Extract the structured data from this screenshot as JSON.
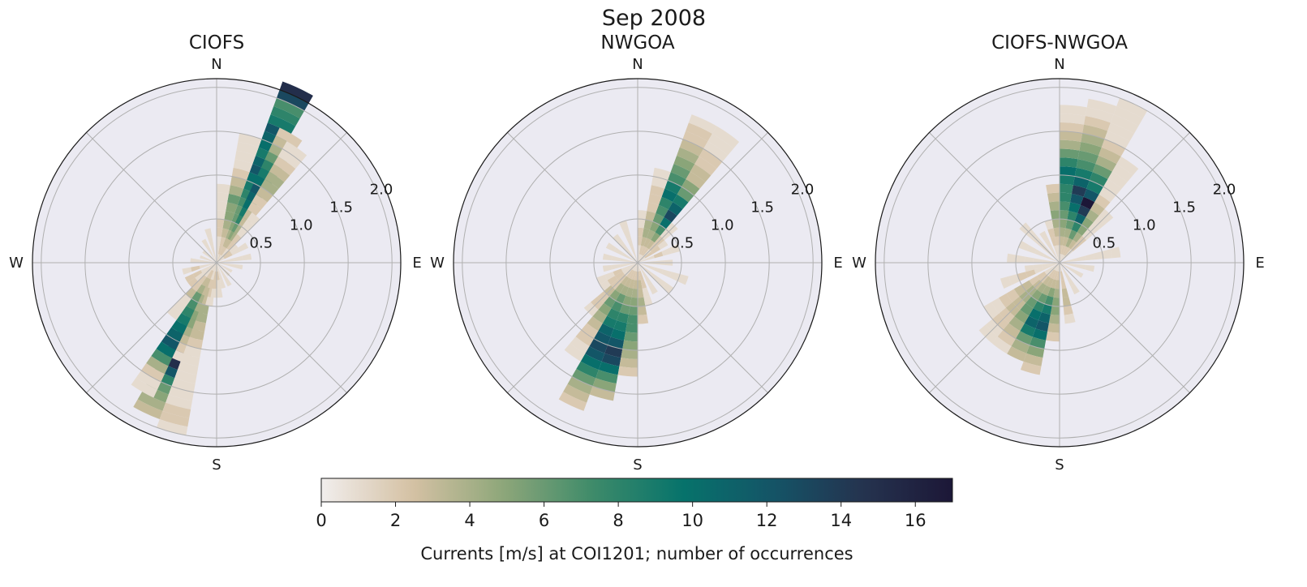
{
  "title": "Sep 2008",
  "colorbar": {
    "label": "Currents [m/s] at COI1201; number of occurrences",
    "ticks": [
      0,
      2,
      4,
      6,
      8,
      10,
      12,
      14,
      16
    ],
    "range": [
      0,
      17
    ],
    "colormap": [
      "#f1eeed",
      "#d5c1a4",
      "#8fa77a",
      "#3f8b6a",
      "#06736b",
      "#145467",
      "#25334f",
      "#1c1737"
    ]
  },
  "chart_data": [
    {
      "type": "polar-histogram",
      "title": "CIOFS",
      "direction_labels": [
        "N",
        "E",
        "S",
        "W"
      ],
      "radial_ticks": [
        "0.5",
        "1.0",
        "1.5",
        "2.0"
      ],
      "radial_max": 2.1,
      "speed_bin_width": 0.1,
      "direction_bin_width_deg": 10,
      "cells": [
        {
          "dir": 25,
          "counts": [
            2,
            2,
            3,
            4,
            5,
            6,
            6,
            7,
            8,
            9,
            10,
            12,
            11,
            9,
            10,
            11,
            12,
            9,
            8,
            7,
            13,
            15
          ]
        },
        {
          "dir": 30,
          "counts": [
            1,
            2,
            3,
            5,
            6,
            8,
            9,
            10,
            11,
            12,
            10,
            9,
            8,
            6,
            4,
            3,
            2
          ]
        },
        {
          "dir": 35,
          "counts": [
            1,
            2,
            3,
            4,
            4,
            3,
            3,
            2,
            2,
            3,
            4,
            4,
            3,
            2,
            1,
            1
          ]
        },
        {
          "dir": 40,
          "counts": [
            1,
            1,
            2,
            2,
            1,
            1,
            1
          ]
        },
        {
          "dir": 15,
          "counts": [
            1,
            2,
            2,
            3,
            4,
            5,
            5,
            6,
            4,
            3,
            2,
            1,
            1,
            1,
            1
          ]
        },
        {
          "dir": 5,
          "counts": [
            1,
            1,
            1,
            2,
            2,
            1,
            1,
            1,
            1
          ]
        },
        {
          "dir": 205,
          "counts": [
            1,
            2,
            3,
            4,
            5,
            6,
            8,
            9,
            10,
            14,
            16,
            17,
            15,
            12,
            8,
            6,
            5,
            4,
            3
          ]
        },
        {
          "dir": 210,
          "counts": [
            1,
            2,
            3,
            4,
            6,
            7,
            8,
            9,
            10,
            11,
            12,
            10,
            7,
            4,
            2,
            1,
            1
          ]
        },
        {
          "dir": 200,
          "counts": [
            1,
            2,
            3,
            3,
            4,
            4,
            5,
            5,
            4,
            3,
            2,
            1
          ]
        },
        {
          "dir": 195,
          "counts": [
            1,
            1,
            2,
            3,
            3,
            4,
            4,
            3,
            3,
            2,
            1,
            1,
            1,
            1,
            1,
            1,
            1,
            2,
            2,
            1
          ]
        },
        {
          "dir": 190,
          "counts": [
            1,
            1,
            2,
            2,
            1
          ]
        },
        {
          "dir": 185,
          "counts": [
            1,
            2,
            2,
            1
          ]
        },
        {
          "dir": 220,
          "counts": [
            1,
            1,
            2,
            2,
            3,
            1,
            1,
            1
          ]
        },
        {
          "dir": 175,
          "counts": [
            1,
            2,
            1,
            1
          ]
        },
        {
          "dir": 165,
          "counts": [
            1,
            1,
            1
          ]
        },
        {
          "dir": 150,
          "counts": [
            1,
            1,
            1
          ]
        },
        {
          "dir": 135,
          "counts": [
            1,
            1
          ]
        },
        {
          "dir": 120,
          "counts": [
            1,
            1
          ]
        },
        {
          "dir": 100,
          "counts": [
            1,
            1,
            1
          ]
        },
        {
          "dir": 80,
          "counts": [
            1,
            1,
            1,
            1
          ]
        },
        {
          "dir": 60,
          "counts": [
            1,
            2,
            1,
            1
          ]
        },
        {
          "dir": 50,
          "counts": [
            1,
            2,
            1
          ]
        },
        {
          "dir": 345,
          "counts": [
            1,
            1,
            1,
            1
          ]
        },
        {
          "dir": 330,
          "counts": [
            1,
            1,
            1
          ]
        },
        {
          "dir": 310,
          "counts": [
            1,
            1
          ]
        },
        {
          "dir": 290,
          "counts": [
            1,
            1
          ]
        },
        {
          "dir": 275,
          "counts": [
            1,
            1,
            1
          ]
        },
        {
          "dir": 255,
          "counts": [
            1,
            1,
            2,
            1
          ]
        },
        {
          "dir": 240,
          "counts": [
            1,
            1,
            2,
            2
          ]
        },
        {
          "dir": 230,
          "counts": [
            1,
            1,
            1,
            2
          ]
        }
      ]
    },
    {
      "type": "polar-histogram",
      "title": "NWGOA",
      "direction_labels": [
        "N",
        "E",
        "S",
        "W"
      ],
      "radial_ticks": [
        "0.5",
        "1.0",
        "1.5",
        "2.0"
      ],
      "radial_max": 2.1,
      "speed_bin_width": 0.1,
      "direction_bin_width_deg": 10,
      "cells": [
        {
          "dir": 25,
          "counts": [
            1,
            2,
            3,
            4,
            5,
            6,
            7,
            8,
            10,
            9,
            7,
            6,
            5,
            4,
            3,
            2,
            2,
            1
          ]
        },
        {
          "dir": 35,
          "counts": [
            1,
            2,
            3,
            5,
            7,
            10,
            13,
            11,
            9,
            6,
            5,
            3,
            3,
            2,
            2,
            1,
            1,
            1
          ]
        },
        {
          "dir": 15,
          "counts": [
            1,
            2,
            3,
            4,
            4,
            3,
            2,
            2,
            2,
            1,
            1
          ]
        },
        {
          "dir": 45,
          "counts": [
            1,
            1,
            2,
            2,
            1,
            1
          ]
        },
        {
          "dir": 5,
          "counts": [
            1,
            1,
            2,
            2,
            1,
            1
          ]
        },
        {
          "dir": 205,
          "counts": [
            1,
            2,
            3,
            4,
            6,
            7,
            8,
            9,
            11,
            12,
            13,
            12,
            10,
            8,
            6,
            4,
            3,
            2
          ]
        },
        {
          "dir": 195,
          "counts": [
            1,
            2,
            3,
            4,
            5,
            6,
            8,
            9,
            10,
            12,
            14,
            13,
            10,
            7,
            5,
            3
          ]
        },
        {
          "dir": 185,
          "counts": [
            1,
            2,
            3,
            4,
            5,
            6,
            7,
            7,
            6,
            5,
            4,
            3,
            2
          ]
        },
        {
          "dir": 215,
          "counts": [
            1,
            2,
            3,
            4,
            5,
            6,
            5,
            4,
            3,
            2,
            2,
            1,
            1
          ]
        },
        {
          "dir": 225,
          "counts": [
            1,
            1,
            2,
            2,
            3,
            2,
            2,
            1
          ]
        },
        {
          "dir": 175,
          "counts": [
            1,
            2,
            3,
            3,
            4,
            3,
            2
          ]
        },
        {
          "dir": 165,
          "counts": [
            1,
            2,
            2,
            1,
            1
          ]
        },
        {
          "dir": 150,
          "counts": [
            1,
            1,
            1,
            1
          ]
        },
        {
          "dir": 130,
          "counts": [
            1,
            1,
            1,
            1,
            1
          ]
        },
        {
          "dir": 110,
          "counts": [
            1,
            1,
            1,
            1,
            1,
            1
          ]
        },
        {
          "dir": 90,
          "counts": [
            1,
            1,
            1,
            1
          ]
        },
        {
          "dir": 70,
          "counts": [
            1,
            1,
            2,
            1,
            1
          ]
        },
        {
          "dir": 55,
          "counts": [
            1,
            2,
            2,
            1
          ]
        },
        {
          "dir": 340,
          "counts": [
            1,
            1,
            1,
            1,
            1
          ]
        },
        {
          "dir": 320,
          "counts": [
            1,
            1,
            1,
            1
          ]
        },
        {
          "dir": 300,
          "counts": [
            1,
            1,
            1,
            1
          ]
        },
        {
          "dir": 280,
          "counts": [
            1,
            1,
            1,
            1
          ]
        },
        {
          "dir": 260,
          "counts": [
            1,
            1,
            1,
            1
          ]
        },
        {
          "dir": 245,
          "counts": [
            1,
            1,
            2,
            1,
            1
          ]
        },
        {
          "dir": 235,
          "counts": [
            1,
            1,
            2,
            2,
            1
          ]
        }
      ]
    },
    {
      "type": "polar-histogram",
      "title": "CIOFS-NWGOA",
      "direction_labels": [
        "N",
        "E",
        "S",
        "W"
      ],
      "radial_ticks": [
        "0.5",
        "1.0",
        "1.5",
        "2.0"
      ],
      "radial_max": 2.1,
      "speed_bin_width": 0.1,
      "direction_bin_width_deg": 10,
      "cells": [
        {
          "dir": 5,
          "counts": [
            1,
            2,
            3,
            4,
            5,
            6,
            7,
            8,
            8,
            9,
            10,
            8,
            6,
            4,
            3,
            2,
            1,
            1
          ]
        },
        {
          "dir": 15,
          "counts": [
            1,
            2,
            3,
            4,
            6,
            8,
            10,
            12,
            14,
            11,
            9,
            7,
            6,
            5,
            4,
            3,
            2,
            1,
            1
          ]
        },
        {
          "dir": 25,
          "counts": [
            1,
            2,
            4,
            6,
            8,
            11,
            14,
            17,
            12,
            9,
            8,
            6,
            4,
            3,
            2,
            1,
            1,
            1,
            1,
            1
          ]
        },
        {
          "dir": 35,
          "counts": [
            1,
            2,
            3,
            4,
            5,
            5,
            4,
            3,
            2,
            1,
            1,
            1,
            1,
            1
          ]
        },
        {
          "dir": 45,
          "counts": [
            1,
            1,
            2,
            2,
            1,
            1,
            1,
            1
          ]
        },
        {
          "dir": 355,
          "counts": [
            1,
            1,
            2,
            3,
            4,
            5,
            4,
            3,
            2
          ]
        },
        {
          "dir": 345,
          "counts": [
            1,
            1,
            2,
            2,
            1
          ]
        },
        {
          "dir": 330,
          "counts": [
            1,
            1,
            1,
            1
          ]
        },
        {
          "dir": 315,
          "counts": [
            1,
            1,
            1,
            1,
            1,
            1
          ]
        },
        {
          "dir": 295,
          "counts": [
            1,
            1,
            1,
            1,
            1
          ]
        },
        {
          "dir": 275,
          "counts": [
            1,
            1,
            1,
            1,
            1,
            1
          ]
        },
        {
          "dir": 80,
          "counts": [
            1,
            1,
            1,
            1,
            1,
            1,
            1
          ]
        },
        {
          "dir": 100,
          "counts": [
            1,
            1,
            1,
            1
          ]
        },
        {
          "dir": 120,
          "counts": [
            1,
            1,
            1
          ]
        },
        {
          "dir": 150,
          "counts": [
            1,
            1,
            1,
            1
          ]
        },
        {
          "dir": 170,
          "counts": [
            1,
            2,
            2,
            3,
            3,
            2,
            1
          ]
        },
        {
          "dir": 185,
          "counts": [
            1,
            2,
            3,
            4,
            5,
            5,
            4,
            3,
            2
          ]
        },
        {
          "dir": 195,
          "counts": [
            1,
            2,
            3,
            5,
            7,
            9,
            11,
            12,
            10,
            7,
            5,
            3,
            2
          ]
        },
        {
          "dir": 205,
          "counts": [
            1,
            2,
            3,
            4,
            6,
            8,
            10,
            11,
            9,
            6,
            4,
            3
          ]
        },
        {
          "dir": 215,
          "counts": [
            1,
            2,
            3,
            4,
            5,
            6,
            6,
            5,
            4,
            3,
            2,
            1
          ]
        },
        {
          "dir": 225,
          "counts": [
            1,
            1,
            2,
            3,
            4,
            4,
            3,
            3,
            2,
            2,
            1,
            1
          ]
        },
        {
          "dir": 235,
          "counts": [
            1,
            1,
            2,
            2,
            3,
            3,
            2,
            2,
            1,
            1
          ]
        },
        {
          "dir": 250,
          "counts": [
            1,
            1,
            1,
            2,
            2,
            1,
            1
          ]
        },
        {
          "dir": 260,
          "counts": [
            1,
            1,
            1,
            1
          ]
        }
      ]
    }
  ]
}
